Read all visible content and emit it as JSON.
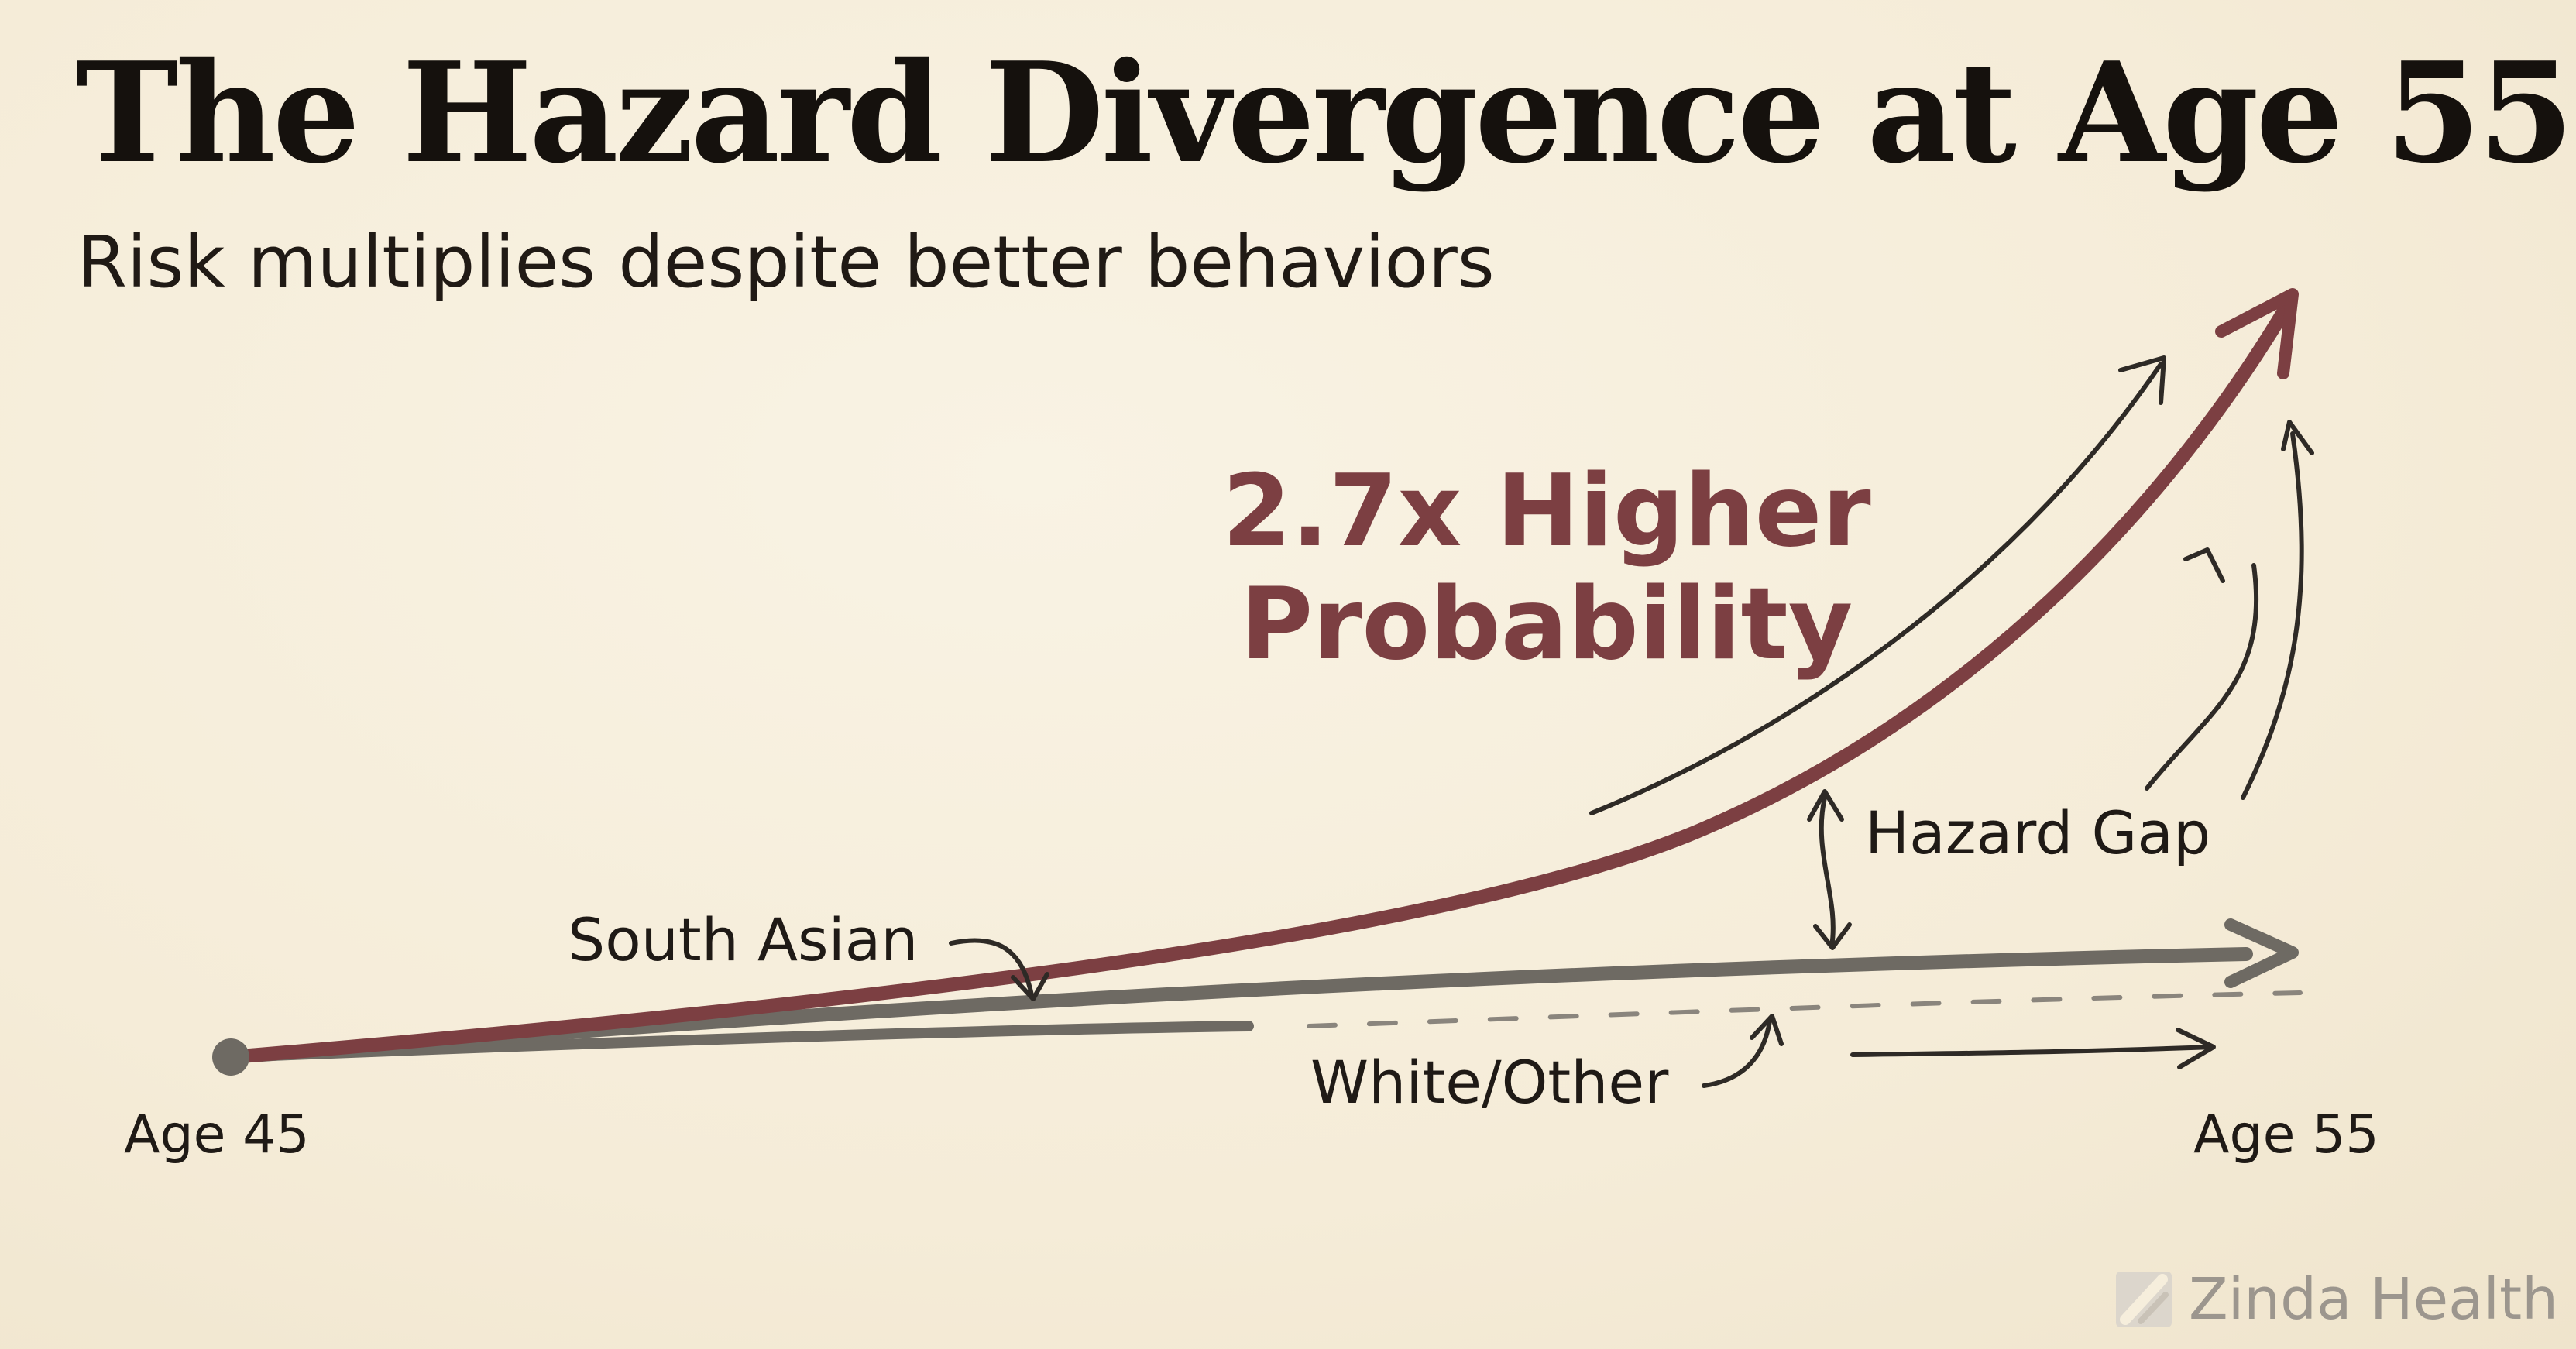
{
  "title": "The Hazard Divergence at Age 55",
  "subtitle": "Risk multiplies despite better behaviors",
  "callout": {
    "line1": "2.7x Higher",
    "line2": "Probability"
  },
  "labels": {
    "south_asian": "South Asian",
    "white_other": "White/Other",
    "hazard_gap": "Hazard Gap",
    "age_start": "Age  45",
    "age_end": "Age  55"
  },
  "brand": {
    "name": "Zinda Health",
    "logo_icon": "slash-logo-icon"
  },
  "colors": {
    "background": "#f6eedc",
    "south_asian_curve": "#7c3f42",
    "white_other_line": "#6e6a63",
    "ink": "#2e2a26",
    "callout": "#7c3f42",
    "brand_text": "#9c968e"
  }
}
